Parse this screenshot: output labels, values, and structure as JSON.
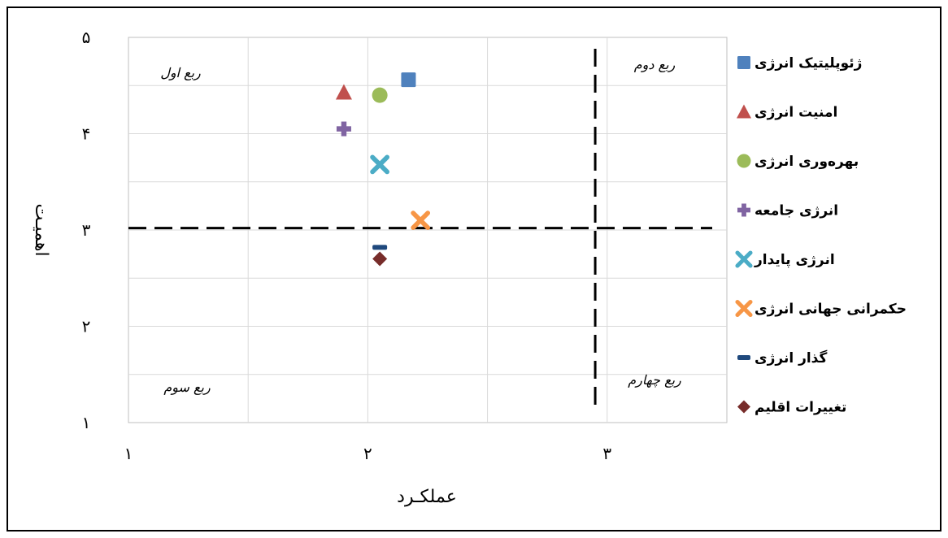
{
  "chart_data": {
    "type": "scatter",
    "xlabel": "عملکـرد",
    "ylabel": "اهمیـت",
    "xlim": [
      1,
      3.5
    ],
    "ylim": [
      1,
      5
    ],
    "x_ticks": [
      {
        "v": 1,
        "label": "۱"
      },
      {
        "v": 2,
        "label": "۲"
      },
      {
        "v": 3,
        "label": "۳"
      }
    ],
    "y_ticks": [
      {
        "v": 1,
        "label": "۱"
      },
      {
        "v": 2,
        "label": "۲"
      },
      {
        "v": 3,
        "label": "۳"
      },
      {
        "v": 4,
        "label": "۴"
      },
      {
        "v": 5,
        "label": "۵"
      }
    ],
    "grid": true,
    "legend_position": "right",
    "reference_lines": {
      "x": 2.95,
      "y": 3.02
    },
    "quadrant_labels": [
      "ربع اول",
      "ربع دوم",
      "ربع سوم",
      "ربع چهارم"
    ],
    "series": [
      {
        "name": "ژئوپلیتیک انرژی",
        "x": 2.17,
        "y": 4.56,
        "marker": "square",
        "color": "#4F81BD"
      },
      {
        "name": "امنیت انرژی",
        "x": 1.9,
        "y": 4.43,
        "marker": "triangle",
        "color": "#C0504D"
      },
      {
        "name": "بهره‌وری انرژی",
        "x": 2.05,
        "y": 4.4,
        "marker": "circle",
        "color": "#9BBB59"
      },
      {
        "name": "انرژی جامعه",
        "x": 1.9,
        "y": 4.05,
        "marker": "plus",
        "color": "#8064A2"
      },
      {
        "name": "انرژی پایدار",
        "x": 2.05,
        "y": 3.68,
        "marker": "x",
        "color": "#4BACC6"
      },
      {
        "name": "حکمرانی جهانی انرژی",
        "x": 2.22,
        "y": 3.1,
        "marker": "x",
        "color": "#F79646"
      },
      {
        "name": "گذار انرژی",
        "x": 2.05,
        "y": 2.82,
        "marker": "dash",
        "color": "#1F497D"
      },
      {
        "name": "تغییرات اقلیم",
        "x": 2.05,
        "y": 2.7,
        "marker": "diamond",
        "color": "#772C2A"
      }
    ]
  }
}
